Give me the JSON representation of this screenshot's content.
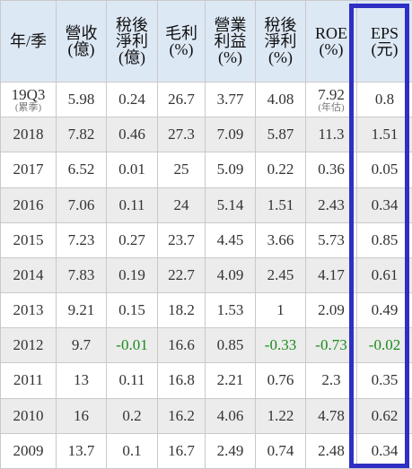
{
  "headers": [
    {
      "l1": "年/季",
      "l2": ""
    },
    {
      "l1": "營收",
      "l2": "(億)"
    },
    {
      "l1": "稅後",
      "l2": "淨利",
      "l3": "(億)"
    },
    {
      "l1": "毛利",
      "l2": "(%)"
    },
    {
      "l1": "營業",
      "l2": "利益",
      "l3": "(%)"
    },
    {
      "l1": "稅後",
      "l2": "淨利",
      "l3": "(%)"
    },
    {
      "l1": "ROE",
      "l2": "(%)"
    },
    {
      "l1": "EPS",
      "l2": "(元)"
    }
  ],
  "rows": [
    {
      "period": "19Q3",
      "period_note": "(累季)",
      "revenue": "5.98",
      "net_income": "0.24",
      "gross_margin": "26.7",
      "op_margin": "3.77",
      "net_margin": "4.08",
      "roe": "7.92",
      "roe_note": "(年估)",
      "eps": "0.8"
    },
    {
      "period": "2018",
      "revenue": "7.82",
      "net_income": "0.46",
      "gross_margin": "27.3",
      "op_margin": "7.09",
      "net_margin": "5.87",
      "roe": "11.3",
      "eps": "1.51"
    },
    {
      "period": "2017",
      "revenue": "6.52",
      "net_income": "0.01",
      "gross_margin": "25",
      "op_margin": "5.09",
      "net_margin": "0.22",
      "roe": "0.36",
      "eps": "0.05"
    },
    {
      "period": "2016",
      "revenue": "7.06",
      "net_income": "0.11",
      "gross_margin": "24",
      "op_margin": "5.14",
      "net_margin": "1.51",
      "roe": "2.43",
      "eps": "0.34"
    },
    {
      "period": "2015",
      "revenue": "7.23",
      "net_income": "0.27",
      "gross_margin": "23.7",
      "op_margin": "4.45",
      "net_margin": "3.66",
      "roe": "5.73",
      "eps": "0.85"
    },
    {
      "period": "2014",
      "revenue": "7.83",
      "net_income": "0.19",
      "gross_margin": "22.7",
      "op_margin": "4.09",
      "net_margin": "2.45",
      "roe": "4.17",
      "eps": "0.61"
    },
    {
      "period": "2013",
      "revenue": "9.21",
      "net_income": "0.15",
      "gross_margin": "18.2",
      "op_margin": "1.53",
      "net_margin": "1",
      "roe": "2.09",
      "eps": "0.49"
    },
    {
      "period": "2012",
      "revenue": "9.7",
      "net_income": "-0.01",
      "gross_margin": "16.6",
      "op_margin": "0.85",
      "net_margin": "-0.33",
      "roe": "-0.73",
      "eps": "-0.02"
    },
    {
      "period": "2011",
      "revenue": "13",
      "net_income": "0.11",
      "gross_margin": "16.8",
      "op_margin": "2.21",
      "net_margin": "0.76",
      "roe": "2.3",
      "eps": "0.35"
    },
    {
      "period": "2010",
      "revenue": "16",
      "net_income": "0.2",
      "gross_margin": "16.2",
      "op_margin": "4.06",
      "net_margin": "1.22",
      "roe": "4.78",
      "eps": "0.62"
    },
    {
      "period": "2009",
      "revenue": "13.7",
      "net_income": "0.1",
      "gross_margin": "16.7",
      "op_margin": "2.49",
      "net_margin": "0.74",
      "roe": "2.48",
      "eps": "0.34"
    }
  ],
  "colors": {
    "header_bg": "#dde8f5",
    "stripe_bg": "#ececec",
    "negative_text": "#1a8a1a",
    "eps_highlight_border": "#2f2fc4"
  }
}
